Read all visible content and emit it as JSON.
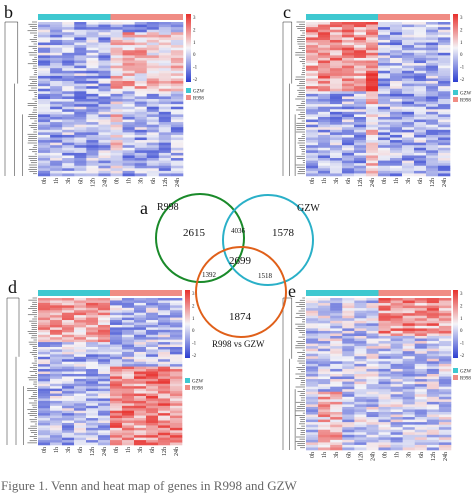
{
  "panels": [
    {
      "label": "b",
      "groups": [
        "GZW",
        "R998"
      ],
      "timepoints": [
        "0h",
        "1h",
        "3h",
        "6h",
        "12h",
        "24h",
        "0h",
        "1h",
        "3h",
        "6h",
        "12h",
        "24h"
      ],
      "scale_ticks": [
        "3",
        "2",
        "1",
        "0",
        "-1",
        "-2"
      ]
    },
    {
      "label": "c",
      "groups": [
        "GZW",
        "R998"
      ],
      "timepoints": [
        "0h",
        "1h",
        "3h",
        "6h",
        "12h",
        "24h",
        "0h",
        "1h",
        "3h",
        "6h",
        "12h",
        "24h"
      ],
      "scale_ticks": [
        "3",
        "2",
        "1",
        "0",
        "-1",
        "-2"
      ]
    },
    {
      "label": "d",
      "groups": [
        "GZW",
        "R998"
      ],
      "timepoints": [
        "0h",
        "1h",
        "3h",
        "6h",
        "12h",
        "24h",
        "0h",
        "1h",
        "3h",
        "6h",
        "12h",
        "24h"
      ],
      "scale_ticks": [
        "3",
        "2",
        "1",
        "0",
        "-1",
        "-2"
      ]
    },
    {
      "label": "e",
      "groups": [
        "GZW",
        "R998"
      ],
      "timepoints": [
        "0h",
        "1h",
        "3h",
        "6h",
        "12h",
        "24h",
        "0h",
        "1h",
        "3h",
        "6h",
        "12h",
        "24h"
      ],
      "scale_ticks": [
        "3",
        "2",
        "1",
        "0",
        "-1",
        "-2"
      ]
    }
  ],
  "venn": {
    "label": "a",
    "sets": [
      {
        "name": "R998",
        "color": "#1a8a2a",
        "only": "2615"
      },
      {
        "name": "GZW",
        "color": "#2ab0c8",
        "only": "1578"
      },
      {
        "name": "R998 vs GZW",
        "color": "#e0601a",
        "only": "1874"
      }
    ],
    "overlaps": {
      "r998_gzw": "4036",
      "r998_cmp": "1392",
      "gzw_cmp": "1518",
      "all": "2699"
    }
  },
  "colors": {
    "gzw_bar": "#3ec8d0",
    "r998_bar": "#f08c84",
    "high": "#e8302c",
    "mid": "#f4f4f8",
    "low": "#2c3ed0"
  },
  "caption": "Figure 1. Venn and heat map of genes in R998 and GZW"
}
